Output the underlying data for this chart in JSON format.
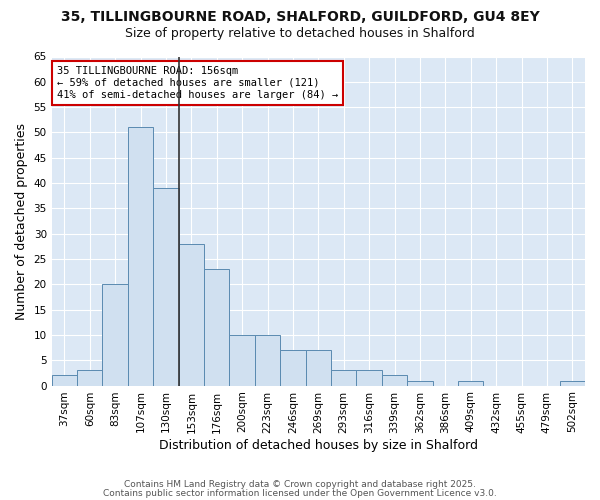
{
  "title_line1": "35, TILLINGBOURNE ROAD, SHALFORD, GUILDFORD, GU4 8EY",
  "title_line2": "Size of property relative to detached houses in Shalford",
  "xlabel": "Distribution of detached houses by size in Shalford",
  "ylabel": "Number of detached properties",
  "categories": [
    "37sqm",
    "60sqm",
    "83sqm",
    "107sqm",
    "130sqm",
    "153sqm",
    "176sqm",
    "200sqm",
    "223sqm",
    "246sqm",
    "269sqm",
    "293sqm",
    "316sqm",
    "339sqm",
    "362sqm",
    "386sqm",
    "409sqm",
    "432sqm",
    "455sqm",
    "479sqm",
    "502sqm"
  ],
  "values": [
    2,
    3,
    20,
    51,
    39,
    28,
    23,
    10,
    10,
    7,
    7,
    3,
    3,
    2,
    1,
    0,
    1,
    0,
    0,
    0,
    1
  ],
  "bar_color": "#d0e0f0",
  "bar_edge_color": "#5a8ab0",
  "reference_line_x": 4.5,
  "annotation_text_line1": "35 TILLINGBOURNE ROAD: 156sqm",
  "annotation_text_line2": "← 59% of detached houses are smaller (121)",
  "annotation_text_line3": "41% of semi-detached houses are larger (84) →",
  "annotation_box_color": "#ffffff",
  "annotation_box_edge_color": "#cc0000",
  "ref_line_color": "#333333",
  "ylim": [
    0,
    65
  ],
  "yticks": [
    0,
    5,
    10,
    15,
    20,
    25,
    30,
    35,
    40,
    45,
    50,
    55,
    60,
    65
  ],
  "footer_line1": "Contains HM Land Registry data © Crown copyright and database right 2025.",
  "footer_line2": "Contains public sector information licensed under the Open Government Licence v3.0.",
  "figure_background_color": "#ffffff",
  "plot_background_color": "#dce8f5",
  "grid_color": "#ffffff",
  "title_fontsize": 10,
  "subtitle_fontsize": 9,
  "axis_label_fontsize": 9,
  "tick_fontsize": 7.5,
  "annotation_fontsize": 7.5,
  "footer_fontsize": 6.5
}
